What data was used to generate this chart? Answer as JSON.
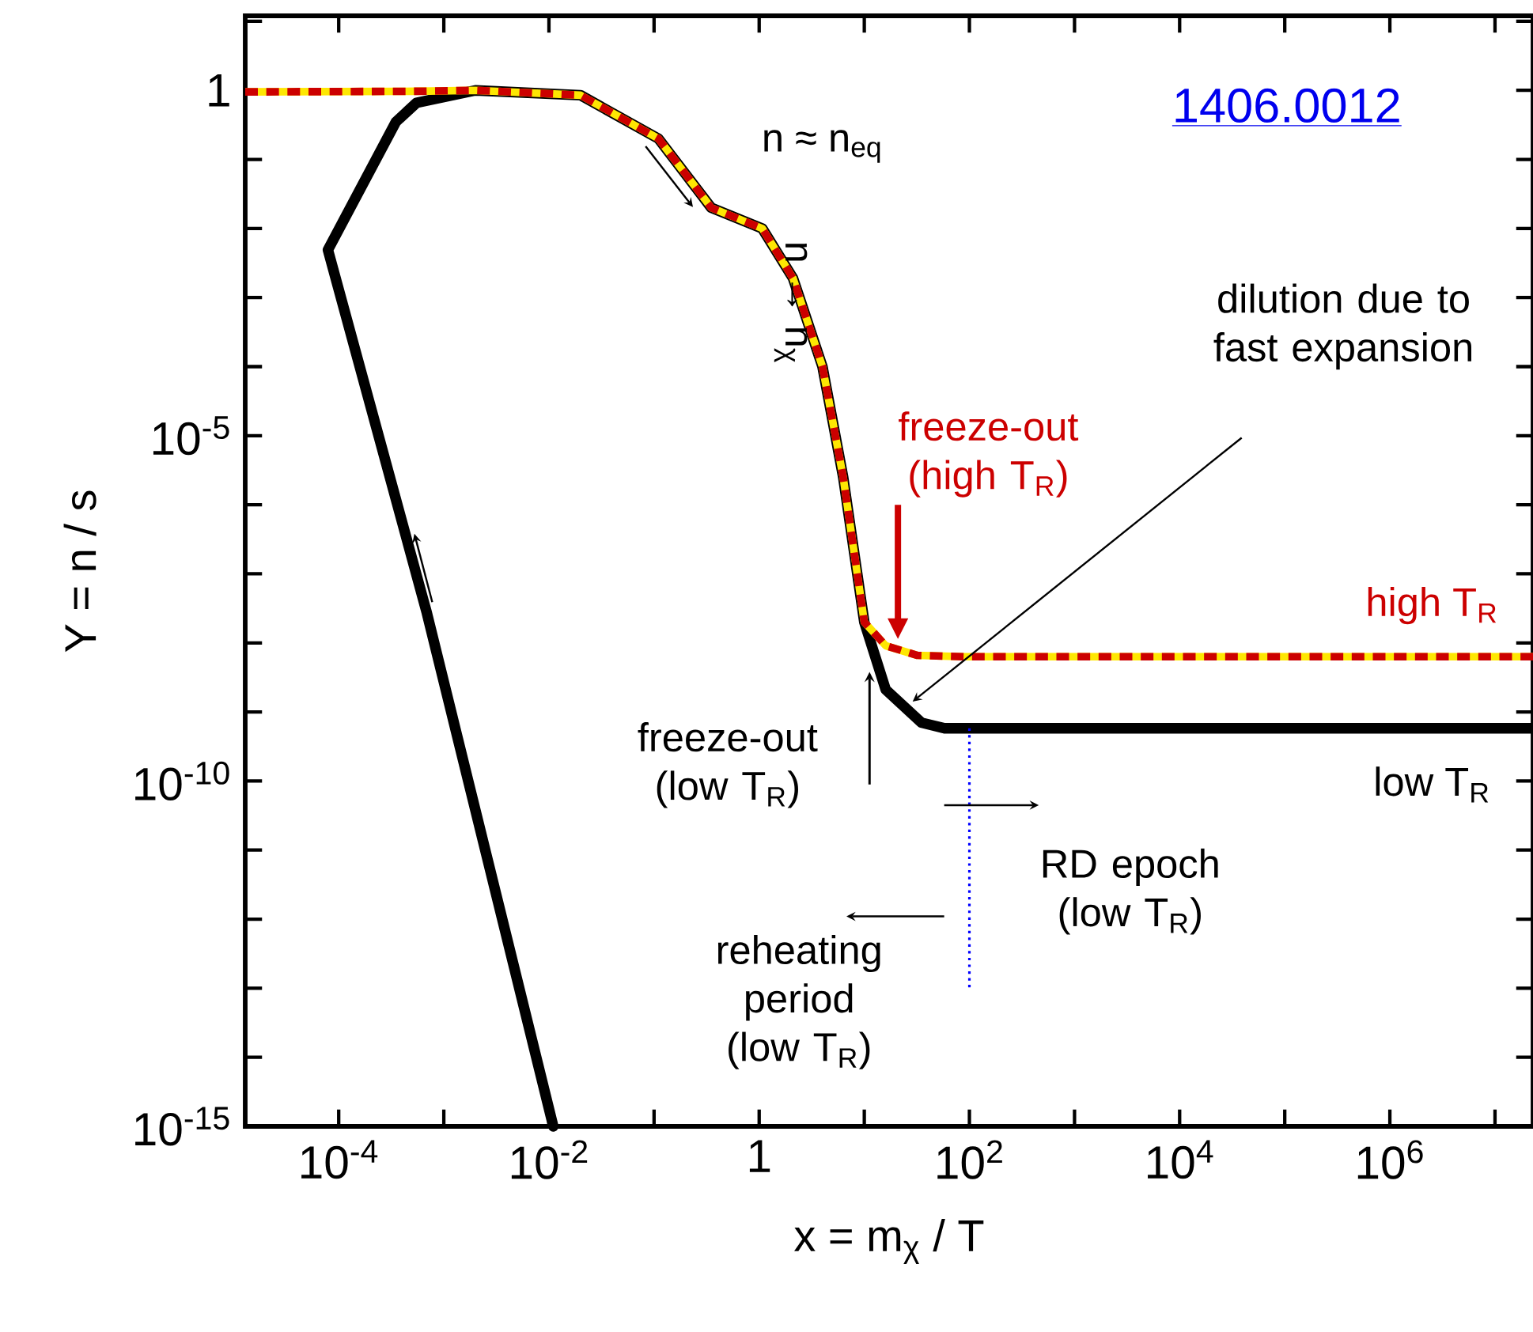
{
  "chart_data": {
    "type": "line",
    "xlabel": "x = m$_{χ}$ / T",
    "ylabel": "Y = n / s",
    "log": "xy",
    "xlim": [
      1.29e-05,
      23000000.0
    ],
    "ylim": [
      1e-15,
      12
    ],
    "xticks": [
      {
        "value": 0.0001,
        "label": "10$^{-4}$"
      },
      {
        "value": 0.001,
        "label": null
      },
      {
        "value": 0.01,
        "label": "10$^{-2}$"
      },
      {
        "value": 0.1,
        "label": null
      },
      {
        "value": 1,
        "label": "1"
      },
      {
        "value": 10,
        "label": null
      },
      {
        "value": 100,
        "label": "10$^{2}$"
      },
      {
        "value": 1000,
        "label": null
      },
      {
        "value": 10000.0,
        "label": "10$^{4}$"
      },
      {
        "value": 100000.0,
        "label": null
      },
      {
        "value": 1000000.0,
        "label": "10$^{6}$"
      },
      {
        "value": 10000000.0,
        "label": null
      }
    ],
    "yticks": [
      {
        "value": 1e-15,
        "label": "10$^{-15}$"
      },
      {
        "value": 1e-14,
        "label": null
      },
      {
        "value": 1e-13,
        "label": null
      },
      {
        "value": 1e-12,
        "label": null
      },
      {
        "value": 1e-11,
        "label": null
      },
      {
        "value": 1e-10,
        "label": "10$^{-10}$"
      },
      {
        "value": 1e-09,
        "label": null
      },
      {
        "value": 1e-08,
        "label": null
      },
      {
        "value": 1e-07,
        "label": null
      },
      {
        "value": 1e-06,
        "label": null
      },
      {
        "value": 1e-05,
        "label": "10$^{-5}$"
      },
      {
        "value": 0.0001,
        "label": null
      },
      {
        "value": 0.001,
        "label": null
      },
      {
        "value": 0.01,
        "label": null
      },
      {
        "value": 0.1,
        "label": null
      },
      {
        "value": 1,
        "label": "1"
      },
      {
        "value": 10,
        "label": null
      }
    ],
    "series": [
      {
        "color": "#000000",
        "x": [
          0.011,
          0.00069,
          7.9e-05,
          0.00035,
          0.00055,
          0.002,
          0.02,
          0.11,
          0.35,
          1.07,
          2.1,
          4,
          6.3,
          10,
          16,
          35,
          58,
          1000.0,
          100000.0,
          23000000.0
        ],
        "values": [
          1e-15,
          2.7e-08,
          0.0049,
          0.35,
          0.66,
          1,
          0.85,
          0.2,
          0.02,
          0.01,
          0.0019,
          0.0001,
          2.5e-06,
          2e-08,
          2.1e-09,
          7e-10,
          5.8e-10,
          5.8e-10,
          5.8e-10,
          5.8e-10
        ]
      },
      {
        "color": "#cc0000",
        "line_style": "dashed",
        "x": [
          1.29e-05,
          0.00055,
          0.002,
          0.02,
          0.11,
          0.35,
          1.07,
          2.1,
          4,
          6.3,
          10,
          16,
          32,
          89,
          1000.0,
          100000.0,
          23000000.0
        ],
        "values": [
          0.95,
          0.97,
          1,
          0.85,
          0.2,
          0.02,
          0.01,
          0.0019,
          0.0001,
          2.5e-06,
          2e-08,
          9.1e-09,
          6.6e-09,
          6.3e-09,
          6.3e-09,
          6.3e-09,
          6.3e-09
        ]
      }
    ],
    "ref_lines": [
      {
        "axis": "x",
        "value": 100,
        "color": "#0000ff",
        "line_style": "dotted"
      }
    ],
    "annotations": [
      "n ≈ n$_{eq}$",
      "n → n$_{χ}$",
      "freeze-out (high T$_{R}$)",
      "dilution due to fast expansion",
      "high T$_{R}$",
      "freeze-out (low T$_{R}$)",
      "low T$_{R}$",
      "RD epoch (low T$_{R}$)",
      "reheating period (low T$_{R}$)",
      "1406.0012"
    ]
  }
}
